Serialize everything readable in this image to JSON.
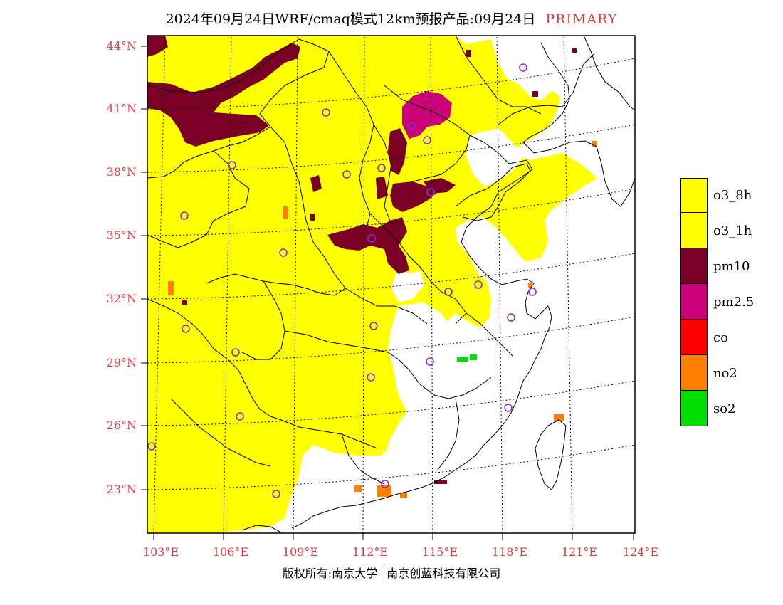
{
  "title": {
    "main": "2024年09月24日WRF/cmaq模式12km预报产品:09月24日",
    "tag": "PRIMARY"
  },
  "axes": {
    "lat_labels": [
      "44°N",
      "41°N",
      "38°N",
      "35°N",
      "32°N",
      "29°N",
      "26°N",
      "23°N"
    ],
    "lon_labels": [
      "103°E",
      "106°E",
      "109°E",
      "112°E",
      "115°E",
      "118°E",
      "121°E",
      "124°E"
    ]
  },
  "legend": [
    {
      "label": "o3_8h",
      "color": "#ffff00"
    },
    {
      "label": "o3_1h",
      "color": "#ffff00"
    },
    {
      "label": "pm10",
      "color": "#7a0026"
    },
    {
      "label": "pm2.5",
      "color": "#cc0077"
    },
    {
      "label": "co",
      "color": "#ff0000"
    },
    {
      "label": "no2",
      "color": "#ff7f00"
    },
    {
      "label": "so2",
      "color": "#00dd00"
    }
  ],
  "colors": {
    "axis_label": "#e53b3b",
    "o3": "#ffff00",
    "pm10": "#7a0026",
    "pm25": "#cc0077",
    "no2": "#ff7f00",
    "so2": "#00dd00",
    "station_marker": "#8a2be2"
  },
  "copyright": {
    "left": "版权所有:南京大学",
    "right": "南京创蓝科技有限公司"
  }
}
